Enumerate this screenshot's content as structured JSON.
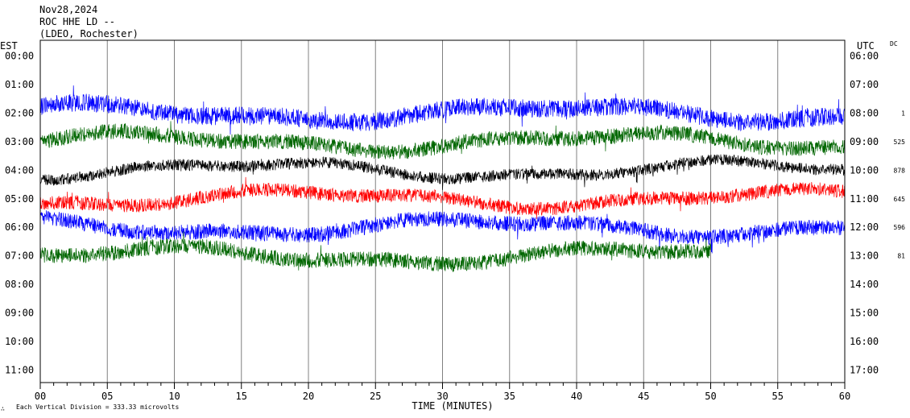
{
  "header": {
    "date": "Nov28,2024",
    "station": "ROC HHE LD --",
    "network": "(LDEO, Rochester)"
  },
  "left_zone_label": "EST",
  "right_zone_label": "UTC",
  "dc_label": "DC",
  "xlabel": "TIME (MINUTES)",
  "footer": {
    "mark": "∴",
    "scale_note": "Each Vertical Division =  333.33 microvolts"
  },
  "chart_data": {
    "type": "line",
    "title": "ROC HHE LD --",
    "xlabel": "TIME (MINUTES)",
    "xlim": [
      0,
      60
    ],
    "x_ticks": [
      0,
      5,
      10,
      15,
      20,
      25,
      30,
      35,
      40,
      45,
      50,
      55,
      60
    ],
    "x_tick_labels": [
      "00",
      "05",
      "10",
      "15",
      "20",
      "25",
      "30",
      "35",
      "40",
      "45",
      "50",
      "55",
      "60"
    ],
    "rows_left": [
      "00:00",
      "01:00",
      "02:00",
      "03:00",
      "04:00",
      "05:00",
      "06:00",
      "07:00",
      "08:00",
      "09:00",
      "10:00",
      "11:00"
    ],
    "rows_right": [
      "06:00",
      "07:00",
      "08:00",
      "09:00",
      "10:00",
      "11:00",
      "12:00",
      "13:00",
      "14:00",
      "15:00",
      "16:00",
      "17:00"
    ],
    "dc_values": [
      "",
      "",
      "1",
      "525",
      "878",
      "645",
      "596",
      "81",
      "",
      "",
      "",
      ""
    ],
    "grid": "vertical every 5 minutes",
    "trace_colors": [
      "#000000",
      "#ff0000",
      "#0000ff",
      "#006600"
    ],
    "traces": [
      {
        "row": 2,
        "color": "#0000ff",
        "end_minute": 60,
        "amp": 0.35,
        "spread": 0.9
      },
      {
        "row": 3,
        "color": "#006600",
        "end_minute": 60,
        "amp": 0.3,
        "spread": 0.9
      },
      {
        "row": 4,
        "color": "#000000",
        "end_minute": 60,
        "amp": 0.25,
        "spread": 0.8
      },
      {
        "row": 5,
        "color": "#ff0000",
        "end_minute": 60,
        "amp": 0.3,
        "spread": 0.8
      },
      {
        "row": 6,
        "color": "#0000ff",
        "end_minute": 60,
        "amp": 0.3,
        "spread": 0.9
      },
      {
        "row": 7,
        "color": "#006600",
        "end_minute": 50,
        "amp": 0.3,
        "spread": 0.9
      }
    ]
  }
}
